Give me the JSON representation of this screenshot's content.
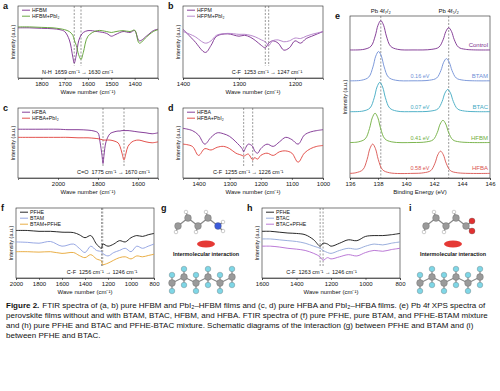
{
  "chart_data": [
    {
      "panel": "a",
      "type": "line",
      "xlabel": "Wave number (cm⁻¹)",
      "ylabel": "Intensity (a.u.)",
      "xlim": [
        1900,
        1300
      ],
      "xticks": [
        1800,
        1700,
        1600,
        1500,
        1400
      ],
      "ylim": [
        -0.2,
        1.35
      ],
      "tick_labels": "x",
      "legend": "upper left",
      "vlines": [
        1659,
        1630
      ],
      "annotations": [
        "N-H",
        "1659 cm⁻¹ → 1630 cm⁻¹"
      ],
      "x": [
        1900,
        1850,
        1800,
        1750,
        1720,
        1700,
        1680,
        1665,
        1659,
        1650,
        1640,
        1630,
        1620,
        1600,
        1560,
        1520,
        1500,
        1480,
        1450,
        1420,
        1400,
        1380,
        1350,
        1320,
        1300
      ],
      "series": [
        {
          "name": "HFBM",
          "color": "#7b2d8e",
          "values": [
            0.88,
            0.88,
            0.87,
            0.86,
            0.84,
            0.8,
            0.62,
            0.25,
            0.12,
            0.3,
            0.6,
            0.72,
            0.78,
            0.82,
            0.8,
            0.76,
            0.7,
            0.74,
            0.8,
            0.78,
            0.82,
            0.6,
            0.7,
            0.82,
            0.85
          ]
        },
        {
          "name": "HFBM+PbI₂",
          "color": "#5a9e2f",
          "values": [
            0.9,
            0.9,
            0.89,
            0.88,
            0.86,
            0.84,
            0.8,
            0.72,
            0.62,
            0.5,
            0.3,
            0.2,
            0.35,
            0.7,
            0.82,
            0.8,
            0.78,
            0.8,
            0.82,
            0.8,
            0.83,
            0.55,
            0.68,
            0.8,
            0.84
          ]
        }
      ]
    },
    {
      "panel": "b",
      "type": "line",
      "xlabel": "Wave number (cm⁻¹)",
      "ylabel": "Intensity (a.u.)",
      "xlim": [
        1400,
        1150
      ],
      "xticks": [
        1400,
        1300,
        1200
      ],
      "ylim": [
        -0.2,
        1.35
      ],
      "tick_labels": "x",
      "legend": "upper left",
      "vlines": [
        1253,
        1247
      ],
      "annotations": [
        "C-F",
        "1253 cm⁻¹ → 1247 cm⁻¹"
      ],
      "x": [
        1400,
        1380,
        1360,
        1350,
        1340,
        1320,
        1300,
        1290,
        1280,
        1270,
        1260,
        1253,
        1247,
        1240,
        1230,
        1220,
        1210,
        1200,
        1190,
        1180,
        1170,
        1160,
        1150
      ],
      "series": [
        {
          "name": "HFPM",
          "color": "#7b2d8e",
          "values": [
            0.85,
            0.6,
            0.35,
            0.5,
            0.7,
            0.75,
            0.7,
            0.72,
            0.68,
            0.6,
            0.5,
            0.45,
            0.55,
            0.6,
            0.55,
            0.4,
            0.45,
            0.6,
            0.55,
            0.65,
            0.7,
            0.75,
            0.8
          ]
        },
        {
          "name": "HFPM+PbI₂",
          "color": "#b07cc6",
          "values": [
            0.8,
            0.7,
            0.55,
            0.6,
            0.72,
            0.76,
            0.74,
            0.74,
            0.72,
            0.68,
            0.62,
            0.58,
            0.5,
            0.6,
            0.62,
            0.58,
            0.6,
            0.66,
            0.65,
            0.7,
            0.74,
            0.77,
            0.8
          ]
        }
      ]
    },
    {
      "panel": "c",
      "type": "line",
      "xlabel": "Wave number (cm⁻¹)",
      "ylabel": "Intensity (a.u.)",
      "xlim": [
        2200,
        1500
      ],
      "xticks": [
        2000,
        1800,
        1600
      ],
      "ylim": [
        -0.2,
        1.35
      ],
      "tick_labels": "x",
      "legend": "upper left",
      "vlines": [
        1775,
        1670
      ],
      "annotations": [
        "C=O",
        "1775 cm⁻¹ → 1670 cm⁻¹"
      ],
      "x": [
        2200,
        2100,
        2000,
        1950,
        1900,
        1850,
        1820,
        1800,
        1790,
        1780,
        1775,
        1770,
        1760,
        1740,
        1720,
        1700,
        1690,
        1680,
        1670,
        1660,
        1650,
        1630,
        1600,
        1560,
        1530,
        1500
      ],
      "series": [
        {
          "name": "HFBA",
          "color": "#7b2d8e",
          "values": [
            0.88,
            0.88,
            0.88,
            0.87,
            0.87,
            0.86,
            0.84,
            0.8,
            0.6,
            0.3,
            0.12,
            0.3,
            0.6,
            0.78,
            0.82,
            0.84,
            0.84,
            0.85,
            0.85,
            0.85,
            0.85,
            0.84,
            0.82,
            0.8,
            0.78,
            0.8
          ]
        },
        {
          "name": "HFBA+PbI₂",
          "color": "#e0403a",
          "values": [
            0.7,
            0.7,
            0.7,
            0.7,
            0.69,
            0.69,
            0.68,
            0.67,
            0.66,
            0.65,
            0.64,
            0.64,
            0.64,
            0.64,
            0.62,
            0.58,
            0.5,
            0.35,
            0.2,
            0.35,
            0.5,
            0.6,
            0.64,
            0.6,
            0.58,
            0.6
          ]
        }
      ]
    },
    {
      "panel": "d",
      "type": "line",
      "xlabel": "Wave number (cm⁻¹)",
      "ylabel": "Intensity (a.u.)",
      "xlim": [
        1450,
        1000
      ],
      "xticks": [
        1400,
        1300,
        1200,
        1100,
        1000
      ],
      "ylim": [
        -0.2,
        1.35
      ],
      "tick_labels": "x",
      "legend": "upper left",
      "vlines": [
        1255,
        1226
      ],
      "annotations": [
        "C-F",
        "1255 cm⁻¹ → 1226 cm⁻¹"
      ],
      "x": [
        1450,
        1420,
        1400,
        1380,
        1360,
        1340,
        1320,
        1300,
        1280,
        1260,
        1255,
        1250,
        1240,
        1226,
        1220,
        1210,
        1200,
        1180,
        1160,
        1140,
        1120,
        1100,
        1080,
        1060,
        1040,
        1020,
        1000
      ],
      "series": [
        {
          "name": "HFBA",
          "color": "#7b2d8e",
          "values": [
            0.9,
            0.85,
            0.75,
            0.55,
            0.7,
            0.8,
            0.78,
            0.72,
            0.6,
            0.45,
            0.38,
            0.45,
            0.55,
            0.5,
            0.4,
            0.35,
            0.45,
            0.55,
            0.5,
            0.6,
            0.7,
            0.65,
            0.55,
            0.75,
            0.82,
            0.85,
            0.87
          ]
        },
        {
          "name": "HFBA+PbI₂",
          "color": "#e0403a",
          "values": [
            0.55,
            0.5,
            0.3,
            0.45,
            0.42,
            0.48,
            0.5,
            0.45,
            0.35,
            0.3,
            0.28,
            0.3,
            0.33,
            0.2,
            0.25,
            0.22,
            0.3,
            0.35,
            0.3,
            0.38,
            0.4,
            0.35,
            0.15,
            0.35,
            0.45,
            0.5,
            0.52
          ]
        }
      ]
    },
    {
      "panel": "e",
      "type": "line",
      "xlabel": "Binding Energy (eV)",
      "ylabel": "Intensity (a.u.)",
      "xlim": [
        136,
        146
      ],
      "xticks": [
        136,
        138,
        140,
        142,
        144,
        146
      ],
      "ylim": [
        -0.15,
        5.1
      ],
      "tick_labels": "x",
      "legend": "inline",
      "vlines": [
        138.2,
        143.05
      ],
      "vline_labels": [
        "Pb 4f₇/₂",
        "Pb 4f₅/₂"
      ],
      "series": [
        {
          "name": "Control",
          "color": "#7a2f8f",
          "x": [
            136,
            137,
            137.5,
            137.8,
            138,
            138.2,
            138.4,
            138.6,
            138.9,
            139.4,
            140.5,
            141.85,
            142.35,
            142.65,
            142.85,
            143.05,
            143.25,
            143.45,
            143.75,
            144.25,
            146
          ],
          "values": [
            4,
            4.02,
            4.12,
            4.45,
            4.8,
            4.95,
            4.8,
            4.45,
            4.12,
            4.02,
            4,
            4.02,
            4.09,
            4.33,
            4.6,
            4.72,
            4.6,
            4.33,
            4.09,
            4.02,
            4
          ]
        },
        {
          "name": "BTAM",
          "color": "#6f8fd6",
          "annotation": "0.16 eV",
          "x": [
            136,
            136.84,
            137.34,
            137.64,
            137.84,
            138.04,
            138.24,
            138.44,
            138.74,
            139.24,
            140.5,
            141.69,
            142.19,
            142.49,
            142.69,
            142.89,
            143.09,
            143.29,
            143.59,
            144.09,
            146
          ],
          "values": [
            3,
            3.02,
            3.12,
            3.45,
            3.8,
            3.95,
            3.8,
            3.45,
            3.12,
            3.02,
            3,
            3.02,
            3.09,
            3.33,
            3.6,
            3.72,
            3.6,
            3.33,
            3.09,
            3.02,
            3
          ]
        },
        {
          "name": "BTAC",
          "color": "#3fa9c2",
          "annotation": "0.07 eV",
          "x": [
            136,
            136.93,
            137.43,
            137.73,
            137.93,
            138.13,
            138.33,
            138.53,
            138.83,
            139.33,
            140.5,
            141.78,
            142.28,
            142.58,
            142.78,
            142.98,
            143.18,
            143.38,
            143.68,
            144.18,
            146
          ],
          "values": [
            2,
            2.02,
            2.12,
            2.45,
            2.8,
            2.95,
            2.8,
            2.45,
            2.12,
            2.02,
            2,
            2.02,
            2.09,
            2.33,
            2.6,
            2.72,
            2.6,
            2.33,
            2.09,
            2.02,
            2
          ]
        },
        {
          "name": "HFBM",
          "color": "#6fae3e",
          "annotation": "0.41 eV",
          "x": [
            136,
            136.59,
            137.09,
            137.39,
            137.59,
            137.79,
            137.99,
            138.19,
            138.49,
            138.99,
            140.5,
            141.44,
            141.94,
            142.24,
            142.44,
            142.64,
            142.84,
            143.04,
            143.34,
            143.84,
            146
          ],
          "values": [
            1,
            1.02,
            1.12,
            1.45,
            1.8,
            1.95,
            1.8,
            1.45,
            1.12,
            1.02,
            1,
            1.02,
            1.09,
            1.33,
            1.6,
            1.72,
            1.6,
            1.33,
            1.09,
            1.02,
            1
          ]
        },
        {
          "name": "HFBA",
          "color": "#d9534f",
          "annotation": "0.58 eV",
          "x": [
            136,
            136.42,
            136.92,
            137.22,
            137.42,
            137.62,
            137.82,
            138.02,
            138.32,
            138.82,
            140.5,
            141.27,
            141.77,
            142.07,
            142.27,
            142.47,
            142.67,
            142.87,
            143.17,
            143.67,
            146
          ],
          "values": [
            0,
            0.02,
            0.12,
            0.45,
            0.8,
            0.95,
            0.8,
            0.45,
            0.12,
            0.02,
            0,
            0.02,
            0.09,
            0.33,
            0.6,
            0.72,
            0.6,
            0.33,
            0.09,
            0.02,
            0
          ]
        }
      ]
    },
    {
      "panel": "f",
      "type": "line",
      "xlabel": "Wave number (cm⁻¹)",
      "ylabel": "Intensity (a.u.)",
      "xlim": [
        2000,
        800
      ],
      "xticks": [
        2000,
        1800,
        1600,
        1400,
        1200,
        1000,
        800
      ],
      "ylim": [
        -0.2,
        1.45
      ],
      "tick_labels": "x",
      "legend": "upper left",
      "vlines": [
        1256,
        1246
      ],
      "annotations": [
        "C-F",
        "1256 cm⁻¹ → 1246 cm⁻¹"
      ],
      "x": [
        2000,
        1900,
        1800,
        1700,
        1600,
        1500,
        1450,
        1400,
        1350,
        1300,
        1256,
        1246,
        1200,
        1150,
        1100,
        1050,
        1000,
        950,
        900,
        850,
        800
      ],
      "series": [
        {
          "name": "PFHE",
          "color": "#111111",
          "values": [
            0.92,
            0.92,
            0.9,
            0.9,
            0.88,
            0.87,
            0.82,
            0.75,
            0.8,
            0.6,
            0.5,
            0.6,
            0.55,
            0.6,
            0.68,
            0.65,
            0.75,
            0.8,
            0.78,
            0.82,
            0.85
          ]
        },
        {
          "name": "BTAM",
          "color": "#8c9ee0",
          "values": [
            0.65,
            0.64,
            0.62,
            0.66,
            0.55,
            0.6,
            0.5,
            0.4,
            0.55,
            0.45,
            0.42,
            0.38,
            0.32,
            0.4,
            0.45,
            0.5,
            0.42,
            0.55,
            0.5,
            0.55,
            0.6
          ]
        },
        {
          "name": "BTAM+PFHE",
          "color": "#e6a531",
          "values": [
            0.42,
            0.42,
            0.41,
            0.42,
            0.38,
            0.4,
            0.33,
            0.28,
            0.35,
            0.25,
            0.2,
            0.12,
            0.15,
            0.22,
            0.28,
            0.3,
            0.25,
            0.32,
            0.3,
            0.33,
            0.36
          ]
        }
      ]
    },
    {
      "panel": "h",
      "type": "line",
      "xlabel": "Wave number (cm⁻¹)",
      "ylabel": "Intensity (a.u.)",
      "xlim": [
        1600,
        800
      ],
      "xticks": [
        1600,
        1400,
        1200,
        1000,
        800
      ],
      "ylim": [
        -0.2,
        1.45
      ],
      "tick_labels": "x",
      "legend": "upper left",
      "vlines": [
        1263,
        1246
      ],
      "annotations": [
        "C-F",
        "1263 cm⁻¹ → 1246 cm⁻¹"
      ],
      "x": [
        1600,
        1550,
        1500,
        1450,
        1400,
        1350,
        1300,
        1263,
        1246,
        1220,
        1200,
        1150,
        1100,
        1050,
        1000,
        950,
        900,
        850,
        800
      ],
      "series": [
        {
          "name": "PFHE",
          "color": "#111111",
          "values": [
            0.9,
            0.9,
            0.88,
            0.86,
            0.85,
            0.82,
            0.7,
            0.55,
            0.62,
            0.6,
            0.55,
            0.62,
            0.7,
            0.68,
            0.78,
            0.8,
            0.8,
            0.82,
            0.85
          ]
        },
        {
          "name": "BTAC",
          "color": "#8fa5d8",
          "values": [
            0.72,
            0.72,
            0.7,
            0.68,
            0.66,
            0.62,
            0.55,
            0.5,
            0.45,
            0.4,
            0.38,
            0.45,
            0.5,
            0.48,
            0.55,
            0.6,
            0.58,
            0.62,
            0.65
          ]
        },
        {
          "name": "BTAC+PFHE",
          "color": "#b36bd1",
          "values": [
            0.55,
            0.55,
            0.53,
            0.5,
            0.48,
            0.45,
            0.38,
            0.3,
            0.22,
            0.28,
            0.25,
            0.3,
            0.35,
            0.32,
            0.4,
            0.45,
            0.43,
            0.47,
            0.5
          ]
        }
      ]
    }
  ],
  "schematics": [
    {
      "panel": "g",
      "label": "Intermolecular interaction"
    },
    {
      "panel": "i",
      "label": "Intermolecular interaction"
    }
  ],
  "caption": {
    "label": "Figure 2.",
    "text": "FTIR spectra of (a, b) pure HFBM and PbI₂–HFBM films and (c, d) pure HFBA and PbI₂–HFBA films. (e) Pb 4f XPS spectra of perovskite films without and with BTAM, BTAC, HFBM, and HFBA. FTIR spectra of (f) pure PFHE, pure BTAM, and PFHE-BTAM mixture and (h) pure PFHE and BTAC and PFHE-BTAC mixture. Schematic diagrams of the interaction (g) between PFHE and BTAM and (i) between PFHE and BTAC."
  }
}
